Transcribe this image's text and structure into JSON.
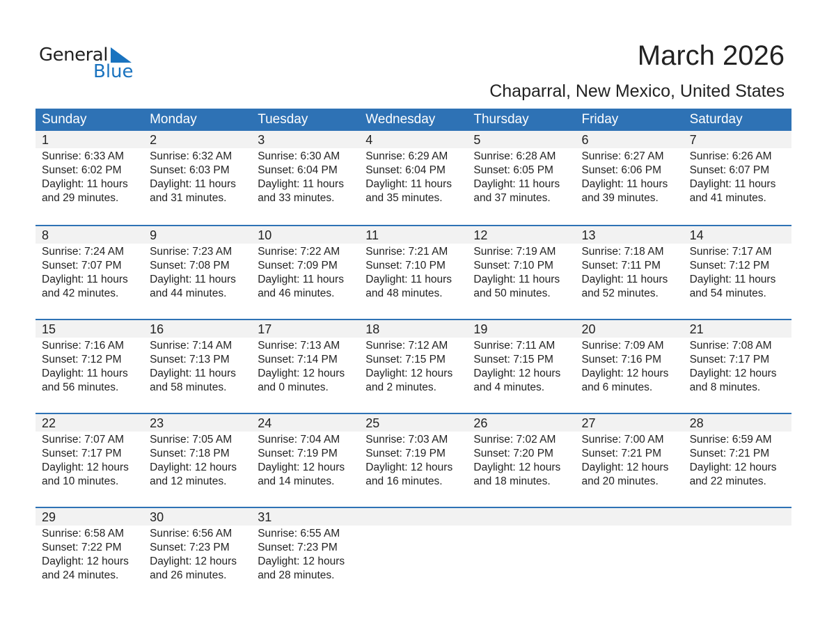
{
  "logo": {
    "general": "General",
    "blue": "Blue"
  },
  "title": "March 2026",
  "location": "Chaparral, New Mexico, United States",
  "colors": {
    "header": "#2e72b5",
    "day_band": "#f2f2f2",
    "logo_blue": "#1a73bf"
  },
  "weekdays": [
    "Sunday",
    "Monday",
    "Tuesday",
    "Wednesday",
    "Thursday",
    "Friday",
    "Saturday"
  ],
  "days": [
    {
      "d": "1",
      "sunrise": "Sunrise: 6:33 AM",
      "sunset": "Sunset: 6:02 PM",
      "daylight": "Daylight: 11 hours",
      "minutes": "and 29 minutes."
    },
    {
      "d": "2",
      "sunrise": "Sunrise: 6:32 AM",
      "sunset": "Sunset: 6:03 PM",
      "daylight": "Daylight: 11 hours",
      "minutes": "and 31 minutes."
    },
    {
      "d": "3",
      "sunrise": "Sunrise: 6:30 AM",
      "sunset": "Sunset: 6:04 PM",
      "daylight": "Daylight: 11 hours",
      "minutes": "and 33 minutes."
    },
    {
      "d": "4",
      "sunrise": "Sunrise: 6:29 AM",
      "sunset": "Sunset: 6:04 PM",
      "daylight": "Daylight: 11 hours",
      "minutes": "and 35 minutes."
    },
    {
      "d": "5",
      "sunrise": "Sunrise: 6:28 AM",
      "sunset": "Sunset: 6:05 PM",
      "daylight": "Daylight: 11 hours",
      "minutes": "and 37 minutes."
    },
    {
      "d": "6",
      "sunrise": "Sunrise: 6:27 AM",
      "sunset": "Sunset: 6:06 PM",
      "daylight": "Daylight: 11 hours",
      "minutes": "and 39 minutes."
    },
    {
      "d": "7",
      "sunrise": "Sunrise: 6:26 AM",
      "sunset": "Sunset: 6:07 PM",
      "daylight": "Daylight: 11 hours",
      "minutes": "and 41 minutes."
    },
    {
      "d": "8",
      "sunrise": "Sunrise: 7:24 AM",
      "sunset": "Sunset: 7:07 PM",
      "daylight": "Daylight: 11 hours",
      "minutes": "and 42 minutes."
    },
    {
      "d": "9",
      "sunrise": "Sunrise: 7:23 AM",
      "sunset": "Sunset: 7:08 PM",
      "daylight": "Daylight: 11 hours",
      "minutes": "and 44 minutes."
    },
    {
      "d": "10",
      "sunrise": "Sunrise: 7:22 AM",
      "sunset": "Sunset: 7:09 PM",
      "daylight": "Daylight: 11 hours",
      "minutes": "and 46 minutes."
    },
    {
      "d": "11",
      "sunrise": "Sunrise: 7:21 AM",
      "sunset": "Sunset: 7:10 PM",
      "daylight": "Daylight: 11 hours",
      "minutes": "and 48 minutes."
    },
    {
      "d": "12",
      "sunrise": "Sunrise: 7:19 AM",
      "sunset": "Sunset: 7:10 PM",
      "daylight": "Daylight: 11 hours",
      "minutes": "and 50 minutes."
    },
    {
      "d": "13",
      "sunrise": "Sunrise: 7:18 AM",
      "sunset": "Sunset: 7:11 PM",
      "daylight": "Daylight: 11 hours",
      "minutes": "and 52 minutes."
    },
    {
      "d": "14",
      "sunrise": "Sunrise: 7:17 AM",
      "sunset": "Sunset: 7:12 PM",
      "daylight": "Daylight: 11 hours",
      "minutes": "and 54 minutes."
    },
    {
      "d": "15",
      "sunrise": "Sunrise: 7:16 AM",
      "sunset": "Sunset: 7:12 PM",
      "daylight": "Daylight: 11 hours",
      "minutes": "and 56 minutes."
    },
    {
      "d": "16",
      "sunrise": "Sunrise: 7:14 AM",
      "sunset": "Sunset: 7:13 PM",
      "daylight": "Daylight: 11 hours",
      "minutes": "and 58 minutes."
    },
    {
      "d": "17",
      "sunrise": "Sunrise: 7:13 AM",
      "sunset": "Sunset: 7:14 PM",
      "daylight": "Daylight: 12 hours",
      "minutes": "and 0 minutes."
    },
    {
      "d": "18",
      "sunrise": "Sunrise: 7:12 AM",
      "sunset": "Sunset: 7:15 PM",
      "daylight": "Daylight: 12 hours",
      "minutes": "and 2 minutes."
    },
    {
      "d": "19",
      "sunrise": "Sunrise: 7:11 AM",
      "sunset": "Sunset: 7:15 PM",
      "daylight": "Daylight: 12 hours",
      "minutes": "and 4 minutes."
    },
    {
      "d": "20",
      "sunrise": "Sunrise: 7:09 AM",
      "sunset": "Sunset: 7:16 PM",
      "daylight": "Daylight: 12 hours",
      "minutes": "and 6 minutes."
    },
    {
      "d": "21",
      "sunrise": "Sunrise: 7:08 AM",
      "sunset": "Sunset: 7:17 PM",
      "daylight": "Daylight: 12 hours",
      "minutes": "and 8 minutes."
    },
    {
      "d": "22",
      "sunrise": "Sunrise: 7:07 AM",
      "sunset": "Sunset: 7:17 PM",
      "daylight": "Daylight: 12 hours",
      "minutes": "and 10 minutes."
    },
    {
      "d": "23",
      "sunrise": "Sunrise: 7:05 AM",
      "sunset": "Sunset: 7:18 PM",
      "daylight": "Daylight: 12 hours",
      "minutes": "and 12 minutes."
    },
    {
      "d": "24",
      "sunrise": "Sunrise: 7:04 AM",
      "sunset": "Sunset: 7:19 PM",
      "daylight": "Daylight: 12 hours",
      "minutes": "and 14 minutes."
    },
    {
      "d": "25",
      "sunrise": "Sunrise: 7:03 AM",
      "sunset": "Sunset: 7:19 PM",
      "daylight": "Daylight: 12 hours",
      "minutes": "and 16 minutes."
    },
    {
      "d": "26",
      "sunrise": "Sunrise: 7:02 AM",
      "sunset": "Sunset: 7:20 PM",
      "daylight": "Daylight: 12 hours",
      "minutes": "and 18 minutes."
    },
    {
      "d": "27",
      "sunrise": "Sunrise: 7:00 AM",
      "sunset": "Sunset: 7:21 PM",
      "daylight": "Daylight: 12 hours",
      "minutes": "and 20 minutes."
    },
    {
      "d": "28",
      "sunrise": "Sunrise: 6:59 AM",
      "sunset": "Sunset: 7:21 PM",
      "daylight": "Daylight: 12 hours",
      "minutes": "and 22 minutes."
    },
    {
      "d": "29",
      "sunrise": "Sunrise: 6:58 AM",
      "sunset": "Sunset: 7:22 PM",
      "daylight": "Daylight: 12 hours",
      "minutes": "and 24 minutes."
    },
    {
      "d": "30",
      "sunrise": "Sunrise: 6:56 AM",
      "sunset": "Sunset: 7:23 PM",
      "daylight": "Daylight: 12 hours",
      "minutes": "and 26 minutes."
    },
    {
      "d": "31",
      "sunrise": "Sunrise: 6:55 AM",
      "sunset": "Sunset: 7:23 PM",
      "daylight": "Daylight: 12 hours",
      "minutes": "and 28 minutes."
    }
  ]
}
